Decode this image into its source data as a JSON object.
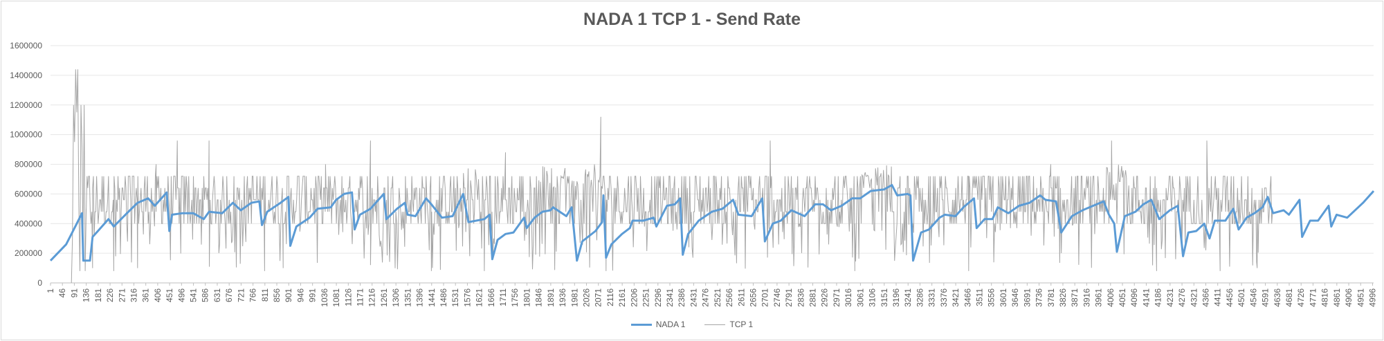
{
  "chart_data": {
    "type": "line",
    "title": "NADA 1 TCP 1 - Send Rate",
    "xlabel": "",
    "ylabel": "",
    "ylim": [
      0,
      1600000
    ],
    "y_ticks": [
      "0",
      "200000",
      "400000",
      "600000",
      "800000",
      "1000000",
      "1200000",
      "1400000",
      "1600000"
    ],
    "x_range": [
      1,
      5000
    ],
    "x_tick_start": 1,
    "x_tick_step": 45,
    "x_tick_count": 112,
    "grid": true,
    "legend_position": "bottom",
    "series": [
      {
        "name": "NADA 1",
        "color": "#5b9bd5",
        "points": [
          [
            1,
            150000
          ],
          [
            60,
            260000
          ],
          [
            100,
            400000
          ],
          [
            120,
            470000
          ],
          [
            125,
            150000
          ],
          [
            150,
            150000
          ],
          [
            160,
            310000
          ],
          [
            180,
            350000
          ],
          [
            220,
            430000
          ],
          [
            240,
            380000
          ],
          [
            290,
            470000
          ],
          [
            330,
            540000
          ],
          [
            370,
            570000
          ],
          [
            395,
            520000
          ],
          [
            440,
            610000
          ],
          [
            450,
            350000
          ],
          [
            460,
            460000
          ],
          [
            500,
            470000
          ],
          [
            540,
            470000
          ],
          [
            580,
            430000
          ],
          [
            600,
            480000
          ],
          [
            650,
            470000
          ],
          [
            690,
            540000
          ],
          [
            720,
            490000
          ],
          [
            760,
            540000
          ],
          [
            790,
            550000
          ],
          [
            800,
            390000
          ],
          [
            820,
            480000
          ],
          [
            870,
            540000
          ],
          [
            900,
            580000
          ],
          [
            907,
            250000
          ],
          [
            930,
            380000
          ],
          [
            980,
            440000
          ],
          [
            1010,
            500000
          ],
          [
            1060,
            510000
          ],
          [
            1080,
            560000
          ],
          [
            1110,
            600000
          ],
          [
            1140,
            610000
          ],
          [
            1150,
            360000
          ],
          [
            1170,
            460000
          ],
          [
            1210,
            500000
          ],
          [
            1260,
            600000
          ],
          [
            1270,
            430000
          ],
          [
            1310,
            500000
          ],
          [
            1340,
            540000
          ],
          [
            1350,
            460000
          ],
          [
            1380,
            450000
          ],
          [
            1420,
            570000
          ],
          [
            1440,
            530000
          ],
          [
            1480,
            440000
          ],
          [
            1520,
            450000
          ],
          [
            1560,
            600000
          ],
          [
            1580,
            410000
          ],
          [
            1640,
            430000
          ],
          [
            1660,
            460000
          ],
          [
            1670,
            160000
          ],
          [
            1690,
            290000
          ],
          [
            1720,
            330000
          ],
          [
            1750,
            340000
          ],
          [
            1790,
            440000
          ],
          [
            1800,
            370000
          ],
          [
            1830,
            440000
          ],
          [
            1860,
            480000
          ],
          [
            1890,
            490000
          ],
          [
            1900,
            510000
          ],
          [
            1950,
            450000
          ],
          [
            1970,
            510000
          ],
          [
            1990,
            150000
          ],
          [
            2010,
            280000
          ],
          [
            2060,
            350000
          ],
          [
            2085,
            410000
          ],
          [
            2090,
            590000
          ],
          [
            2100,
            170000
          ],
          [
            2120,
            260000
          ],
          [
            2160,
            330000
          ],
          [
            2190,
            370000
          ],
          [
            2200,
            420000
          ],
          [
            2240,
            420000
          ],
          [
            2280,
            440000
          ],
          [
            2290,
            380000
          ],
          [
            2330,
            520000
          ],
          [
            2360,
            530000
          ],
          [
            2380,
            570000
          ],
          [
            2390,
            190000
          ],
          [
            2410,
            330000
          ],
          [
            2450,
            420000
          ],
          [
            2500,
            480000
          ],
          [
            2540,
            500000
          ],
          [
            2580,
            560000
          ],
          [
            2600,
            460000
          ],
          [
            2650,
            450000
          ],
          [
            2690,
            570000
          ],
          [
            2700,
            280000
          ],
          [
            2730,
            400000
          ],
          [
            2760,
            420000
          ],
          [
            2800,
            490000
          ],
          [
            2850,
            450000
          ],
          [
            2890,
            530000
          ],
          [
            2920,
            530000
          ],
          [
            2950,
            490000
          ],
          [
            2990,
            520000
          ],
          [
            3030,
            570000
          ],
          [
            3060,
            570000
          ],
          [
            3100,
            620000
          ],
          [
            3150,
            630000
          ],
          [
            3180,
            660000
          ],
          [
            3200,
            590000
          ],
          [
            3240,
            600000
          ],
          [
            3250,
            590000
          ],
          [
            3260,
            150000
          ],
          [
            3290,
            340000
          ],
          [
            3320,
            360000
          ],
          [
            3360,
            440000
          ],
          [
            3380,
            460000
          ],
          [
            3420,
            450000
          ],
          [
            3450,
            510000
          ],
          [
            3490,
            570000
          ],
          [
            3500,
            370000
          ],
          [
            3530,
            430000
          ],
          [
            3560,
            430000
          ],
          [
            3580,
            510000
          ],
          [
            3620,
            470000
          ],
          [
            3660,
            520000
          ],
          [
            3700,
            540000
          ],
          [
            3740,
            590000
          ],
          [
            3760,
            560000
          ],
          [
            3800,
            550000
          ],
          [
            3820,
            340000
          ],
          [
            3860,
            450000
          ],
          [
            3900,
            490000
          ],
          [
            3940,
            520000
          ],
          [
            3980,
            550000
          ],
          [
            4000,
            460000
          ],
          [
            4020,
            400000
          ],
          [
            4030,
            210000
          ],
          [
            4060,
            450000
          ],
          [
            4100,
            480000
          ],
          [
            4130,
            530000
          ],
          [
            4160,
            560000
          ],
          [
            4190,
            430000
          ],
          [
            4230,
            490000
          ],
          [
            4260,
            520000
          ],
          [
            4280,
            180000
          ],
          [
            4300,
            340000
          ],
          [
            4330,
            350000
          ],
          [
            4360,
            400000
          ],
          [
            4380,
            300000
          ],
          [
            4400,
            420000
          ],
          [
            4440,
            420000
          ],
          [
            4470,
            500000
          ],
          [
            4490,
            360000
          ],
          [
            4520,
            440000
          ],
          [
            4550,
            470000
          ],
          [
            4580,
            510000
          ],
          [
            4600,
            580000
          ],
          [
            4620,
            470000
          ],
          [
            4660,
            490000
          ],
          [
            4680,
            460000
          ],
          [
            4720,
            560000
          ],
          [
            4730,
            310000
          ],
          [
            4760,
            420000
          ],
          [
            4790,
            420000
          ],
          [
            4830,
            520000
          ],
          [
            4840,
            380000
          ],
          [
            4860,
            460000
          ],
          [
            4900,
            440000
          ],
          [
            4960,
            540000
          ],
          [
            5000,
            620000
          ]
        ]
      },
      {
        "name": "TCP 1",
        "color": "#a5a5a5",
        "points": [
          [
            80,
            0
          ],
          [
            84,
            300000
          ],
          [
            88,
            1200000
          ],
          [
            92,
            950000
          ],
          [
            96,
            1440000
          ],
          [
            100,
            1150000
          ],
          [
            104,
            1440000
          ],
          [
            108,
            520000
          ],
          [
            112,
            80000
          ],
          [
            116,
            1200000
          ],
          [
            120,
            920000
          ],
          [
            124,
            260000
          ],
          [
            128,
            1200000
          ],
          [
            132,
            80000
          ],
          [
            136,
            500000
          ],
          [
            160,
            100000
          ],
          [
            240,
            80000
          ],
          [
            330,
            100000
          ],
          [
            400,
            800000
          ],
          [
            480,
            960000
          ],
          [
            600,
            960000
          ],
          [
            810,
            80000
          ],
          [
            880,
            100000
          ],
          [
            1040,
            800000
          ],
          [
            1210,
            960000
          ],
          [
            1440,
            80000
          ],
          [
            1640,
            80000
          ],
          [
            1720,
            880000
          ],
          [
            2080,
            1120000
          ],
          [
            2100,
            80000
          ],
          [
            2720,
            960000
          ],
          [
            3040,
            80000
          ],
          [
            3470,
            80000
          ],
          [
            3780,
            800000
          ],
          [
            4010,
            960000
          ],
          [
            4180,
            80000
          ],
          [
            4370,
            960000
          ],
          [
            4420,
            80000
          ],
          [
            4560,
            100000
          ]
        ]
      }
    ]
  },
  "legend": {
    "nada_label": "NADA 1",
    "tcp_label": "TCP 1"
  }
}
